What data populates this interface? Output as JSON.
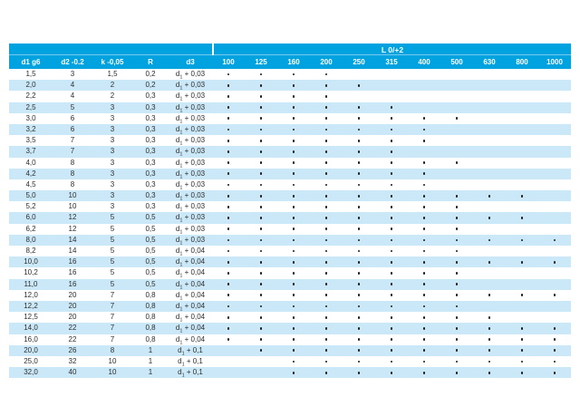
{
  "colors": {
    "header_cyan": "#00a3e0",
    "row_alt": "#cbe8f8",
    "body_text": "#2e2e2e",
    "header_text": "#ffffff",
    "dot": "#1a1a1a"
  },
  "table": {
    "group_header_label": "L 0/+2",
    "column_labels": [
      "d1 g6",
      "d2 -0.2",
      "k -0,05",
      "R",
      "d3"
    ],
    "length_columns": [
      "100",
      "125",
      "160",
      "200",
      "250",
      "315",
      "400",
      "500",
      "630",
      "800",
      "1000"
    ],
    "rows": [
      {
        "d1": "1,5",
        "d2": "3",
        "k": "1,5",
        "r": "0,2",
        "d3": "d1 + 0,03",
        "available_lengths": [
          "100",
          "125",
          "160",
          "200"
        ]
      },
      {
        "d1": "2,0",
        "d2": "4",
        "k": "2",
        "r": "0,2",
        "d3": "d1 + 0,03",
        "available_lengths": [
          "100",
          "125",
          "160",
          "200",
          "250"
        ]
      },
      {
        "d1": "2,2",
        "d2": "4",
        "k": "2",
        "r": "0,3",
        "d3": "d1 + 0,03",
        "available_lengths": [
          "100",
          "125",
          "160",
          "200"
        ]
      },
      {
        "d1": "2,5",
        "d2": "5",
        "k": "3",
        "r": "0,3",
        "d3": "d1 + 0,03",
        "available_lengths": [
          "100",
          "125",
          "160",
          "200",
          "250",
          "315"
        ]
      },
      {
        "d1": "3,0",
        "d2": "6",
        "k": "3",
        "r": "0,3",
        "d3": "d1 + 0,03",
        "available_lengths": [
          "100",
          "125",
          "160",
          "200",
          "250",
          "315",
          "400",
          "500"
        ]
      },
      {
        "d1": "3,2",
        "d2": "6",
        "k": "3",
        "r": "0,3",
        "d3": "d1 + 0,03",
        "available_lengths": [
          "100",
          "125",
          "160",
          "200",
          "250",
          "315",
          "400"
        ]
      },
      {
        "d1": "3,5",
        "d2": "7",
        "k": "3",
        "r": "0,3",
        "d3": "d1 + 0,03",
        "available_lengths": [
          "100",
          "125",
          "160",
          "200",
          "250",
          "315",
          "400"
        ]
      },
      {
        "d1": "3,7",
        "d2": "7",
        "k": "3",
        "r": "0,3",
        "d3": "d1 + 0,03",
        "available_lengths": [
          "100",
          "125",
          "160",
          "200",
          "250",
          "315"
        ]
      },
      {
        "d1": "4,0",
        "d2": "8",
        "k": "3",
        "r": "0,3",
        "d3": "d1 + 0,03",
        "available_lengths": [
          "100",
          "125",
          "160",
          "200",
          "250",
          "315",
          "400",
          "500"
        ]
      },
      {
        "d1": "4,2",
        "d2": "8",
        "k": "3",
        "r": "0,3",
        "d3": "d1 + 0,03",
        "available_lengths": [
          "100",
          "125",
          "160",
          "200",
          "250",
          "315",
          "400"
        ]
      },
      {
        "d1": "4,5",
        "d2": "8",
        "k": "3",
        "r": "0,3",
        "d3": "d1 + 0,03",
        "available_lengths": [
          "100",
          "125",
          "160",
          "200",
          "250",
          "315",
          "400"
        ]
      },
      {
        "d1": "5,0",
        "d2": "10",
        "k": "3",
        "r": "0,3",
        "d3": "d1 + 0,03",
        "available_lengths": [
          "100",
          "125",
          "160",
          "200",
          "250",
          "315",
          "400",
          "500",
          "630",
          "800"
        ]
      },
      {
        "d1": "5,2",
        "d2": "10",
        "k": "3",
        "r": "0,3",
        "d3": "d1 + 0,03",
        "available_lengths": [
          "100",
          "125",
          "160",
          "200",
          "250",
          "315",
          "400",
          "500"
        ]
      },
      {
        "d1": "6,0",
        "d2": "12",
        "k": "5",
        "r": "0,5",
        "d3": "d1 + 0,03",
        "available_lengths": [
          "100",
          "125",
          "160",
          "200",
          "250",
          "315",
          "400",
          "500",
          "630",
          "800"
        ]
      },
      {
        "d1": "6,2",
        "d2": "12",
        "k": "5",
        "r": "0,5",
        "d3": "d1 + 0,03",
        "available_lengths": [
          "100",
          "125",
          "160",
          "200",
          "250",
          "315",
          "400",
          "500"
        ]
      },
      {
        "d1": "8,0",
        "d2": "14",
        "k": "5",
        "r": "0,5",
        "d3": "d1 + 0,03",
        "available_lengths": [
          "100",
          "125",
          "160",
          "200",
          "250",
          "315",
          "400",
          "500",
          "630",
          "800",
          "1000"
        ]
      },
      {
        "d1": "8,2",
        "d2": "14",
        "k": "5",
        "r": "0,5",
        "d3": "d1 + 0,04",
        "available_lengths": [
          "100",
          "125",
          "160",
          "200",
          "250",
          "315",
          "400",
          "500"
        ]
      },
      {
        "d1": "10,0",
        "d2": "16",
        "k": "5",
        "r": "0,5",
        "d3": "d1 + 0,04",
        "available_lengths": [
          "100",
          "125",
          "160",
          "200",
          "250",
          "315",
          "400",
          "500",
          "630",
          "800",
          "1000"
        ]
      },
      {
        "d1": "10,2",
        "d2": "16",
        "k": "5",
        "r": "0,5",
        "d3": "d1 + 0,04",
        "available_lengths": [
          "100",
          "125",
          "160",
          "200",
          "250",
          "315",
          "400",
          "500"
        ]
      },
      {
        "d1": "11,0",
        "d2": "16",
        "k": "5",
        "r": "0,5",
        "d3": "d1 + 0,04",
        "available_lengths": [
          "100",
          "125",
          "160",
          "200",
          "250",
          "315",
          "400",
          "500"
        ]
      },
      {
        "d1": "12,0",
        "d2": "20",
        "k": "7",
        "r": "0,8",
        "d3": "d1 + 0,04",
        "available_lengths": [
          "100",
          "125",
          "160",
          "200",
          "250",
          "315",
          "400",
          "500",
          "630",
          "800",
          "1000"
        ]
      },
      {
        "d1": "12,2",
        "d2": "20",
        "k": "7",
        "r": "0,8",
        "d3": "d1 + 0,04",
        "available_lengths": [
          "100",
          "125",
          "160",
          "200",
          "250",
          "315",
          "400",
          "500"
        ]
      },
      {
        "d1": "12,5",
        "d2": "20",
        "k": "7",
        "r": "0,8",
        "d3": "d1 + 0,04",
        "available_lengths": [
          "100",
          "125",
          "160",
          "200",
          "250",
          "315",
          "400",
          "500",
          "630"
        ]
      },
      {
        "d1": "14,0",
        "d2": "22",
        "k": "7",
        "r": "0,8",
        "d3": "d1 + 0,04",
        "available_lengths": [
          "100",
          "125",
          "160",
          "200",
          "250",
          "315",
          "400",
          "500",
          "630",
          "800",
          "1000"
        ]
      },
      {
        "d1": "16,0",
        "d2": "22",
        "k": "7",
        "r": "0,8",
        "d3": "d1 + 0,04",
        "available_lengths": [
          "100",
          "125",
          "160",
          "200",
          "250",
          "315",
          "400",
          "500",
          "630",
          "800",
          "1000"
        ]
      },
      {
        "d1": "20,0",
        "d2": "26",
        "k": "8",
        "r": "1",
        "d3": "d1 + 0,1",
        "available_lengths": [
          "125",
          "160",
          "200",
          "250",
          "315",
          "400",
          "500",
          "630",
          "800",
          "1000"
        ]
      },
      {
        "d1": "25,0",
        "d2": "32",
        "k": "10",
        "r": "1",
        "d3": "d1 + 0,1",
        "available_lengths": [
          "160",
          "200",
          "250",
          "315",
          "400",
          "500",
          "630",
          "800",
          "1000"
        ]
      },
      {
        "d1": "32,0",
        "d2": "40",
        "k": "10",
        "r": "1",
        "d3": "d1 + 0,1",
        "available_lengths": [
          "160",
          "200",
          "250",
          "315",
          "400",
          "500",
          "630",
          "800",
          "1000"
        ]
      }
    ]
  }
}
